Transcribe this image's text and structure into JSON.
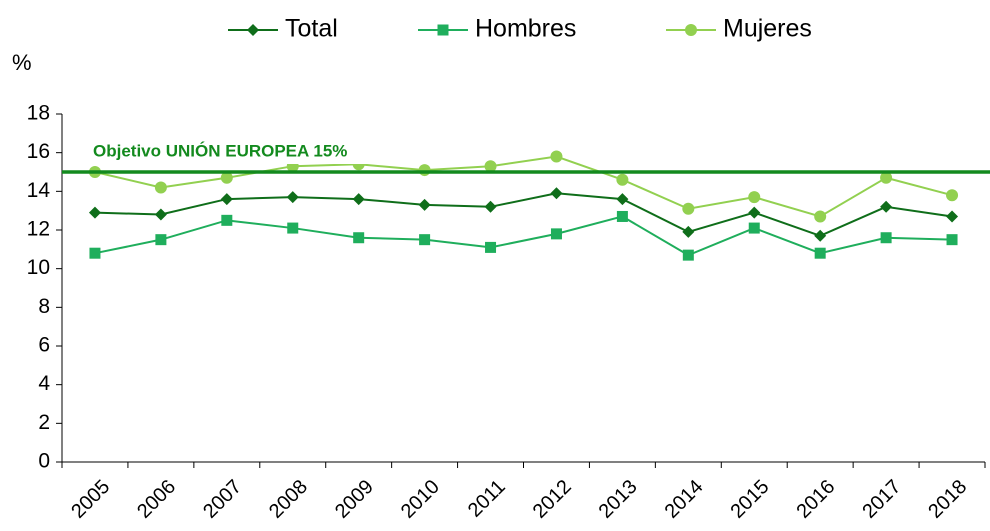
{
  "chart_data": {
    "type": "line",
    "y_label": "%",
    "categories": [
      "2005",
      "2006",
      "2007",
      "2008",
      "2009",
      "2010",
      "2011",
      "2012",
      "2013",
      "2014",
      "2015",
      "2016",
      "2017",
      "2018"
    ],
    "series": [
      {
        "name": "Total",
        "color": "#0f6e1a",
        "marker": "diamond",
        "values": [
          12.9,
          12.8,
          13.6,
          13.7,
          13.6,
          13.3,
          13.2,
          13.9,
          13.6,
          11.9,
          12.9,
          11.7,
          13.2,
          12.7
        ]
      },
      {
        "name": "Hombres",
        "color": "#1fae5c",
        "marker": "square",
        "values": [
          10.8,
          11.5,
          12.5,
          12.1,
          11.6,
          11.5,
          11.1,
          11.8,
          12.7,
          10.7,
          12.1,
          10.8,
          11.6,
          11.5
        ]
      },
      {
        "name": "Mujeres",
        "color": "#92d050",
        "marker": "circle",
        "values": [
          15.0,
          14.2,
          14.7,
          15.3,
          15.4,
          15.1,
          15.3,
          15.8,
          14.6,
          13.1,
          13.7,
          12.7,
          14.7,
          13.8
        ]
      }
    ],
    "reference_line": {
      "value": 15,
      "label": "Objetivo UNIÓN EUROPEA  15%",
      "color": "#138a1e"
    },
    "ylim": [
      0,
      18
    ],
    "yticks": [
      0,
      2,
      4,
      6,
      8,
      10,
      12,
      14,
      16,
      18
    ],
    "grid": false,
    "legend": "top"
  }
}
